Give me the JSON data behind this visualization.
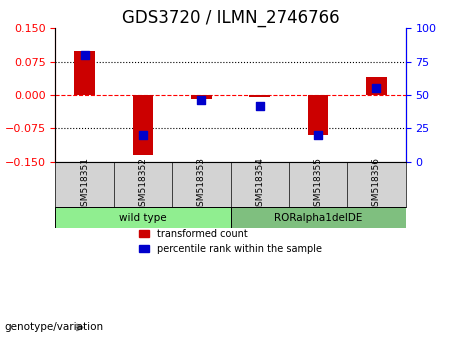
{
  "title": "GDS3720 / ILMN_2746766",
  "samples": [
    "GSM518351",
    "GSM518352",
    "GSM518353",
    "GSM518354",
    "GSM518355",
    "GSM518356"
  ],
  "transformed_count": [
    0.1,
    -0.135,
    -0.01,
    -0.005,
    -0.09,
    0.04
  ],
  "percentile_rank": [
    80,
    20,
    46,
    42,
    20,
    55
  ],
  "groups": [
    {
      "label": "wild type",
      "indices": [
        0,
        1,
        2
      ],
      "color": "#90EE90"
    },
    {
      "label": "RORalpha1delDE",
      "indices": [
        3,
        4,
        5
      ],
      "color": "#7FBF7F"
    }
  ],
  "ylim_left": [
    -0.15,
    0.15
  ],
  "ylim_right": [
    0,
    100
  ],
  "yticks_left": [
    -0.15,
    -0.075,
    0,
    0.075,
    0.15
  ],
  "yticks_right": [
    0,
    25,
    50,
    75,
    100
  ],
  "hlines": [
    0.075,
    0,
    -0.075
  ],
  "bar_color": "#CC0000",
  "dot_color": "#0000CC",
  "bar_width": 0.35,
  "dot_size": 40,
  "legend_red_label": "transformed count",
  "legend_blue_label": "percentile rank within the sample",
  "genotype_label": "genotype/variation",
  "background_plot": "#FFFFFF",
  "background_label": "#E0E0E0",
  "title_fontsize": 12,
  "axis_fontsize": 9,
  "tick_fontsize": 8
}
